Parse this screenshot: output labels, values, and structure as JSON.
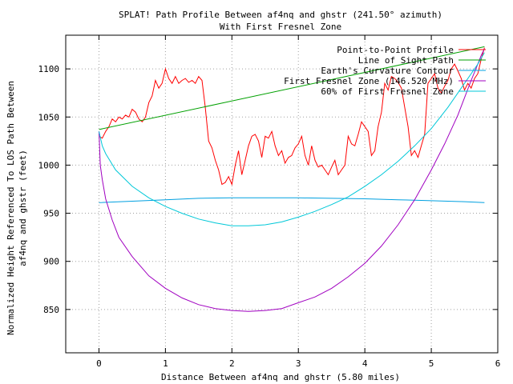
{
  "chart_data": {
    "type": "line",
    "title": "SPLAT! Path Profile Between af4nq and ghstr (241.50° azimuth)",
    "subtitle": "With First Fresnel Zone",
    "xlabel": "Distance Between af4nq and ghstr (5.80 miles)",
    "ylabel_line1": "Normalized Height Referenced To LOS Path Between",
    "ylabel_line2": "af4nq and ghstr (feet)",
    "xlim": [
      -0.5,
      6
    ],
    "ylim": [
      805,
      1135
    ],
    "x_ticks": [
      0,
      1,
      2,
      3,
      4,
      5,
      6
    ],
    "y_ticks": [
      850,
      900,
      950,
      1000,
      1050,
      1100
    ],
    "grid": true,
    "legend_position": "top-right",
    "series": [
      {
        "name": "Point-to-Point Profile",
        "color": "#ff0000",
        "x": [
          0,
          0.05,
          0.1,
          0.15,
          0.2,
          0.25,
          0.3,
          0.35,
          0.4,
          0.45,
          0.5,
          0.55,
          0.6,
          0.65,
          0.7,
          0.75,
          0.8,
          0.85,
          0.9,
          0.95,
          1.0,
          1.05,
          1.1,
          1.15,
          1.2,
          1.25,
          1.3,
          1.35,
          1.4,
          1.45,
          1.5,
          1.55,
          1.6,
          1.65,
          1.7,
          1.75,
          1.8,
          1.85,
          1.9,
          1.95,
          2.0,
          2.05,
          2.1,
          2.15,
          2.2,
          2.25,
          2.3,
          2.35,
          2.4,
          2.45,
          2.5,
          2.55,
          2.6,
          2.65,
          2.7,
          2.75,
          2.8,
          2.85,
          2.9,
          2.95,
          3.0,
          3.05,
          3.1,
          3.15,
          3.2,
          3.25,
          3.3,
          3.35,
          3.4,
          3.45,
          3.5,
          3.55,
          3.6,
          3.65,
          3.7,
          3.75,
          3.8,
          3.85,
          3.9,
          3.95,
          4.0,
          4.05,
          4.1,
          4.15,
          4.2,
          4.25,
          4.3,
          4.35,
          4.4,
          4.45,
          4.5,
          4.55,
          4.6,
          4.65,
          4.7,
          4.75,
          4.8,
          4.85,
          4.9,
          4.95,
          5.0,
          5.05,
          5.1,
          5.15,
          5.2,
          5.25,
          5.3,
          5.35,
          5.4,
          5.45,
          5.5,
          5.55,
          5.6,
          5.65,
          5.7,
          5.75,
          5.8
        ],
        "y": [
          1030,
          1028,
          1035,
          1040,
          1048,
          1045,
          1050,
          1048,
          1052,
          1050,
          1058,
          1055,
          1048,
          1045,
          1050,
          1065,
          1072,
          1088,
          1080,
          1085,
          1100,
          1090,
          1085,
          1092,
          1085,
          1088,
          1090,
          1086,
          1088,
          1085,
          1092,
          1088,
          1060,
          1025,
          1018,
          1005,
          995,
          980,
          982,
          988,
          980,
          1000,
          1015,
          990,
          1005,
          1020,
          1030,
          1032,
          1025,
          1008,
          1030,
          1028,
          1035,
          1020,
          1010,
          1015,
          1002,
          1008,
          1010,
          1018,
          1022,
          1030,
          1010,
          1000,
          1020,
          1005,
          998,
          1000,
          995,
          990,
          998,
          1005,
          990,
          995,
          1000,
          1030,
          1022,
          1020,
          1032,
          1045,
          1040,
          1035,
          1010,
          1015,
          1040,
          1055,
          1085,
          1078,
          1092,
          1090,
          1086,
          1080,
          1060,
          1040,
          1010,
          1015,
          1008,
          1020,
          1032,
          1085,
          1090,
          1095,
          1080,
          1075,
          1082,
          1088,
          1100,
          1105,
          1098,
          1090,
          1078,
          1085,
          1080,
          1090,
          1095,
          1110,
          1122
        ]
      },
      {
        "name": "Line of Sight Path",
        "color": "#00a000",
        "x": [
          0,
          5.8
        ],
        "y": [
          1037,
          1123
        ]
      },
      {
        "name": "Earth's Curvature Contour",
        "color": "#00a0e0",
        "x": [
          0,
          0.5,
          1.0,
          1.5,
          2.0,
          2.5,
          3.0,
          3.5,
          4.0,
          4.5,
          5.0,
          5.5,
          5.8
        ],
        "y": [
          961,
          962.5,
          964,
          965.5,
          966,
          966,
          966,
          965.5,
          965,
          964,
          963,
          962,
          961
        ]
      },
      {
        "name": "First Fresnel Zone (146.520 MHz)",
        "color": "#a000c0",
        "x": [
          0,
          0.02,
          0.05,
          0.1,
          0.2,
          0.3,
          0.5,
          0.75,
          1.0,
          1.25,
          1.5,
          1.75,
          2.0,
          2.25,
          2.5,
          2.75,
          3.0,
          3.25,
          3.5,
          3.75,
          4.0,
          4.25,
          4.5,
          4.75,
          5.0,
          5.2,
          5.4,
          5.6,
          5.7,
          5.75,
          5.8
        ],
        "y": [
          1035,
          1000,
          985,
          965,
          943,
          925,
          905,
          885,
          872,
          862,
          855,
          851,
          849,
          848,
          849,
          851,
          857,
          863,
          872,
          884,
          898,
          916,
          938,
          964,
          995,
          1022,
          1052,
          1088,
          1105,
          1114,
          1121
        ]
      },
      {
        "name": "60% of First Fresnel Zone",
        "color": "#00c8d8",
        "x": [
          0,
          0.05,
          0.1,
          0.25,
          0.5,
          0.75,
          1.0,
          1.25,
          1.5,
          1.75,
          2.0,
          2.25,
          2.5,
          2.75,
          3.0,
          3.25,
          3.5,
          3.75,
          4.0,
          4.25,
          4.5,
          4.75,
          5.0,
          5.25,
          5.5,
          5.7,
          5.8
        ],
        "y": [
          1035,
          1020,
          1012,
          995,
          978,
          966,
          957,
          950,
          944,
          940,
          937,
          937,
          938,
          941,
          946,
          952,
          959,
          967,
          978,
          990,
          1004,
          1020,
          1038,
          1060,
          1085,
          1105,
          1117
        ]
      }
    ]
  }
}
